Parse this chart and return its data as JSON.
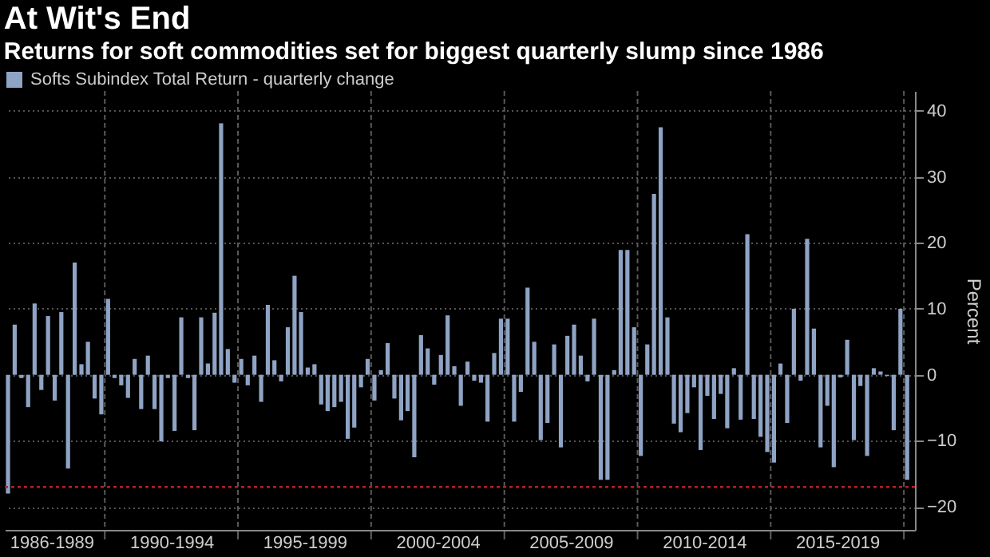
{
  "chart_data": {
    "type": "bar",
    "title": "At Wit's End",
    "subtitle": "Returns for soft commodities set for biggest quarterly slump since 1986",
    "ylabel": "Percent",
    "x": [
      "1986-05-15",
      "1986-08-15",
      "1986-11-15",
      "1987-02-15",
      "1987-05-15",
      "1987-08-15",
      "1987-11-15",
      "1988-02-15",
      "1988-05-15",
      "1988-08-15",
      "1988-11-15",
      "1989-02-15",
      "1989-05-15",
      "1989-08-15",
      "1989-11-15",
      "1990-02-15",
      "1990-05-15",
      "1990-08-15",
      "1990-11-15",
      "1991-02-15",
      "1991-05-15",
      "1991-08-15",
      "1991-11-15",
      "1992-02-15",
      "1992-05-15",
      "1992-08-15",
      "1992-11-15",
      "1993-02-15",
      "1993-05-15",
      "1993-08-15",
      "1993-11-15",
      "1994-02-15",
      "1994-05-15",
      "1994-08-15",
      "1994-11-15",
      "1995-02-15",
      "1995-05-15",
      "1995-08-15",
      "1995-11-15",
      "1996-02-15",
      "1996-05-15",
      "1996-08-15",
      "1996-11-15",
      "1997-02-15",
      "1997-05-15",
      "1997-08-15",
      "1997-11-15",
      "1998-02-15",
      "1998-05-15",
      "1998-08-15",
      "1998-11-15",
      "1999-02-15",
      "1999-05-15",
      "1999-08-15",
      "1999-11-15",
      "2000-02-15",
      "2000-05-15",
      "2000-08-15",
      "2000-11-15",
      "2001-02-15",
      "2001-05-15",
      "2001-08-15",
      "2001-11-15",
      "2002-02-15",
      "2002-05-15",
      "2002-08-15",
      "2002-11-15",
      "2003-02-15",
      "2003-05-15",
      "2003-08-15",
      "2003-11-15",
      "2004-02-15",
      "2004-05-15",
      "2004-08-15",
      "2004-11-15",
      "2005-02-15",
      "2005-05-15",
      "2005-08-15",
      "2005-11-15",
      "2006-02-15",
      "2006-05-15",
      "2006-08-15",
      "2006-11-15",
      "2007-02-15",
      "2007-05-15",
      "2007-08-15",
      "2007-11-15",
      "2008-02-15",
      "2008-05-15",
      "2008-08-15",
      "2008-11-15",
      "2009-02-15",
      "2009-05-15",
      "2009-08-15",
      "2009-11-15",
      "2010-02-15",
      "2010-05-15",
      "2010-08-15",
      "2010-11-15",
      "2011-02-15",
      "2011-05-15",
      "2011-08-15",
      "2011-11-15",
      "2012-02-15",
      "2012-05-15",
      "2012-08-15",
      "2012-11-15",
      "2013-02-15",
      "2013-05-15",
      "2013-08-15",
      "2013-11-15",
      "2014-02-15",
      "2014-05-15",
      "2014-08-15",
      "2014-11-15",
      "2015-02-15",
      "2015-05-15",
      "2015-08-15",
      "2015-11-15",
      "2016-02-15",
      "2016-05-15",
      "2016-08-15",
      "2016-11-15",
      "2017-02-15",
      "2017-05-15",
      "2017-08-15",
      "2017-11-15",
      "2018-02-15",
      "2018-05-15",
      "2018-08-15",
      "2018-11-15",
      "2019-02-15",
      "2019-05-15",
      "2019-08-15",
      "2019-11-15",
      "2020-02-15"
    ],
    "series": [
      {
        "name": "Softs Subindex Total Return - quarterly change",
        "color": "#8fa3c4",
        "values": [
          -18,
          7.6,
          -0.5,
          -4.9,
          10.8,
          -2.3,
          8.9,
          -3.9,
          9.5,
          -14.2,
          17,
          1.6,
          5.0,
          -3.6,
          -6.0,
          11.5,
          -0.5,
          -1.6,
          -3.5,
          2.4,
          -5.2,
          2.9,
          -5.2,
          -10.1,
          -0.5,
          -8.5,
          8.7,
          -0.5,
          -8.4,
          8.7,
          1.7,
          9.4,
          38.1,
          3.9,
          -1.2,
          2.4,
          -1.6,
          2.9,
          -4.1,
          10.6,
          2.2,
          -1.0,
          7.2,
          15,
          9.5,
          1.1,
          1.6,
          -4.5,
          -5.5,
          -4.9,
          -4.1,
          -9.7,
          -8.0,
          -1.9,
          2.4,
          -3.9,
          0.7,
          4.8,
          -3.6,
          -6.9,
          -5.5,
          -12.5,
          6,
          4,
          -1.5,
          3,
          9,
          1.3,
          -4.7,
          2,
          -0.9,
          -1.2,
          -7.1,
          3.3,
          8.5,
          8.5,
          -7.1,
          -2.6,
          13.2,
          5,
          -9.9,
          -7.3,
          4.6,
          -11,
          5.9,
          7.6,
          2.9,
          -1.0,
          8.5,
          -15.9,
          -15.9,
          0.7,
          18.9,
          18.9,
          7.2,
          -12.3,
          4.6,
          27.4,
          37.5,
          8.7,
          -7.4,
          -8.7,
          -5.8,
          -1.9,
          -11.4,
          -3.2,
          -6.7,
          -2.9,
          -8.1,
          1.0,
          -6.8,
          21.3,
          -6.7,
          -9.4,
          -11.7,
          -13.3,
          1.7,
          -7.3,
          10,
          -0.9,
          20.6,
          7.0,
          -11.0,
          -4.7,
          -14.0,
          -0.4,
          5.3,
          -9.9,
          -1.7,
          -12.3,
          1.0,
          0.5,
          -0.2,
          -8.4,
          10,
          -15.9
        ]
      }
    ],
    "xlim": [
      "1986-04",
      "2020-06"
    ],
    "xticks": [
      {
        "value": "1988-01-01",
        "label": "1986-1989"
      },
      {
        "value": "1990-01-01",
        "label": null
      },
      {
        "value": "1992-07-01",
        "label": "1990-1994"
      },
      {
        "value": "1995-01-01",
        "label": null
      },
      {
        "value": "1997-07-01",
        "label": "1995-1999"
      },
      {
        "value": "2000-01-01",
        "label": null
      },
      {
        "value": "2002-07-01",
        "label": "2000-2004"
      },
      {
        "value": "2005-01-01",
        "label": null
      },
      {
        "value": "2007-07-01",
        "label": "2005-2009"
      },
      {
        "value": "2010-01-01",
        "label": null
      },
      {
        "value": "2012-07-01",
        "label": "2010-2014"
      },
      {
        "value": "2015-01-01",
        "label": null
      },
      {
        "value": "2017-07-01",
        "label": "2015-2019"
      },
      {
        "value": "2020-01-01",
        "label": null
      }
    ],
    "ylim": [
      -23.5,
      43
    ],
    "yticks": [
      -20,
      -10,
      0,
      10,
      20,
      30,
      40
    ],
    "grid": true,
    "legend": "top left",
    "ref_lines": [
      {
        "axis": "y",
        "value": -17,
        "color": "#b22222",
        "line_style": "dotted"
      }
    ]
  }
}
